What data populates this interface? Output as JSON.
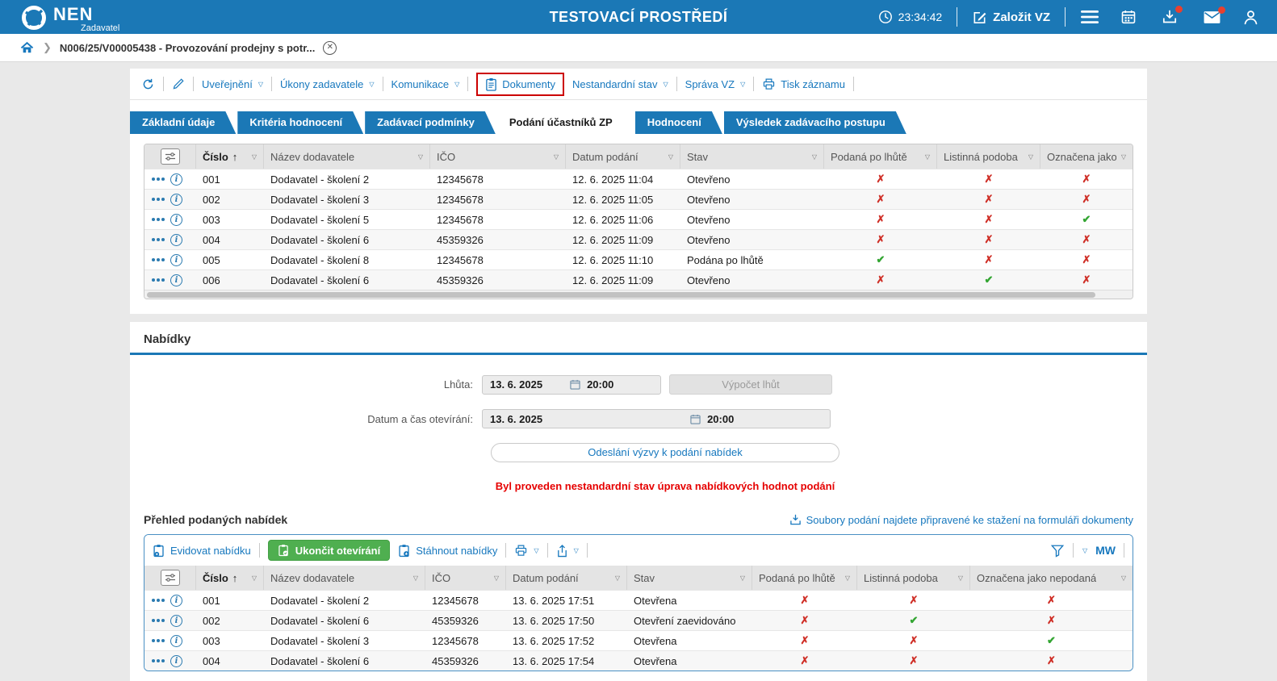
{
  "header": {
    "logo_text": "NEN",
    "logo_subtext": "Zadavatel",
    "env_title": "TESTOVACÍ PROSTŘEDÍ",
    "time": "23:34:42",
    "create_vz_label": "Založit VZ"
  },
  "breadcrumb": {
    "item_label": "N006/25/V00005438 - Provozování prodejny s potr..."
  },
  "action_bar": {
    "uverejneni": "Uveřejnění",
    "ukony_zadavatele": "Úkony zadavatele",
    "komunikace": "Komunikace",
    "dokumenty": "Dokumenty",
    "nestandardni_stav": "Nestandardní stav",
    "sprava_vz": "Správa VZ",
    "tisk_zaznamu": "Tisk záznamu"
  },
  "tabs": [
    {
      "label": "Základní údaje",
      "active": false
    },
    {
      "label": "Kritéria hodnocení",
      "active": false
    },
    {
      "label": "Zadávací podmínky",
      "active": false
    },
    {
      "label": "Podání účastníků ZP",
      "active": true
    },
    {
      "label": "Hodnocení",
      "active": false
    },
    {
      "label": "Výsledek zadávacího postupu",
      "active": false
    }
  ],
  "submissions_table": {
    "columns": [
      "Číslo",
      "Název dodavatele",
      "IČO",
      "Datum podání",
      "Stav",
      "Podaná po lhůtě",
      "Listinná podoba",
      "Označena jako nepodaná"
    ],
    "rows": [
      {
        "cislo": "001",
        "nazev": "Dodavatel - školení 2",
        "ico": "12345678",
        "datum": "12. 6. 2025 11:04",
        "stav": "Otevřeno",
        "po_lhute": false,
        "listinna": false,
        "nepodana": false
      },
      {
        "cislo": "002",
        "nazev": "Dodavatel - školení 3",
        "ico": "12345678",
        "datum": "12. 6. 2025 11:05",
        "stav": "Otevřeno",
        "po_lhute": false,
        "listinna": false,
        "nepodana": false
      },
      {
        "cislo": "003",
        "nazev": "Dodavatel - školení 5",
        "ico": "12345678",
        "datum": "12. 6. 2025 11:06",
        "stav": "Otevřeno",
        "po_lhute": false,
        "listinna": false,
        "nepodana": true
      },
      {
        "cislo": "004",
        "nazev": "Dodavatel - školení 6",
        "ico": "45359326",
        "datum": "12. 6. 2025 11:09",
        "stav": "Otevřeno",
        "po_lhute": false,
        "listinna": false,
        "nepodana": false
      },
      {
        "cislo": "005",
        "nazev": "Dodavatel - školení 8",
        "ico": "12345678",
        "datum": "12. 6. 2025 11:10",
        "stav": "Podána po lhůtě",
        "po_lhute": true,
        "listinna": false,
        "nepodana": false
      },
      {
        "cislo": "006",
        "nazev": "Dodavatel - školení 6",
        "ico": "45359326",
        "datum": "12. 6. 2025 11:09",
        "stav": "Otevřeno",
        "po_lhute": false,
        "listinna": true,
        "nepodana": false
      }
    ]
  },
  "nabidky": {
    "section_title": "Nabídky",
    "lhuta_label": "Lhůta:",
    "lhuta_date": "13. 6. 2025",
    "lhuta_time": "20:00",
    "vypocet_btn": "Výpočet lhůt",
    "otevirani_label": "Datum a čas otevírání:",
    "otevirani_date": "13. 6. 2025",
    "otevirani_time": "20:00",
    "odeslani_btn": "Odeslání výzvy k podání nabídek",
    "warning_text": "Byl proveden nestandardní stav úprava nabídkových hodnot podání",
    "prehled_title": "Přehled podaných nabídek",
    "soubory_link": "Soubory podání najdete připravené ke stažení na formuláři dokumenty",
    "evidovat_btn": "Evidovat nabídku",
    "ukoncit_btn": "Ukončit otevírání",
    "stahnout_btn": "Stáhnout nabídky",
    "mw_label": "MW"
  },
  "offers_table": {
    "columns": [
      "Číslo",
      "Název dodavatele",
      "IČO",
      "Datum podání",
      "Stav",
      "Podaná po lhůtě",
      "Listinná podoba",
      "Označena jako nepodaná"
    ],
    "rows": [
      {
        "cislo": "001",
        "nazev": "Dodavatel - školení 2",
        "ico": "12345678",
        "datum": "13. 6. 2025 17:51",
        "stav": "Otevřena",
        "po_lhute": false,
        "listinna": false,
        "nepodana": false
      },
      {
        "cislo": "002",
        "nazev": "Dodavatel - školení 6",
        "ico": "45359326",
        "datum": "13. 6. 2025 17:50",
        "stav": "Otevření zaevidováno",
        "po_lhute": false,
        "listinna": true,
        "nepodana": false
      },
      {
        "cislo": "003",
        "nazev": "Dodavatel - školení 3",
        "ico": "12345678",
        "datum": "13. 6. 2025 17:52",
        "stav": "Otevřena",
        "po_lhute": false,
        "listinna": false,
        "nepodana": true
      },
      {
        "cislo": "004",
        "nazev": "Dodavatel - školení 6",
        "ico": "45359326",
        "datum": "13. 6. 2025 17:54",
        "stav": "Otevřena",
        "po_lhute": false,
        "listinna": false,
        "nepodana": false
      }
    ]
  },
  "colors": {
    "topbar_blue": "#1b78b6",
    "link_blue": "#1778be",
    "green_button": "#4faf50",
    "red_x": "#cf2e26",
    "green_check": "#33a532",
    "warning_red": "#e60000",
    "highlight_red": "#cc0000"
  }
}
